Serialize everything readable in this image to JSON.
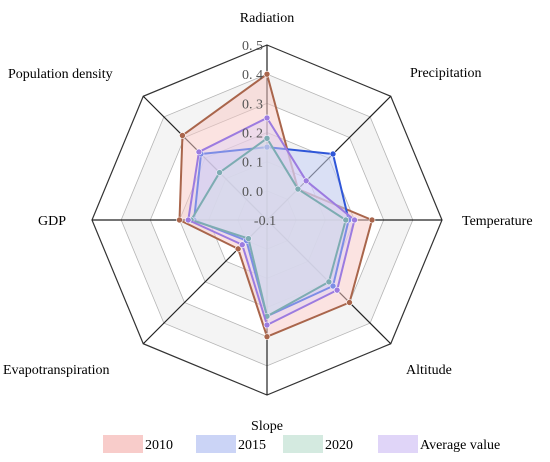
{
  "chart_data": {
    "type": "radar",
    "axes": [
      "Radiation",
      "Precipitation",
      "Temperature",
      "Altitude",
      "Slope",
      "Evapotranspiration",
      "GDP",
      "Population density"
    ],
    "rlim": [
      -0.1,
      0.5
    ],
    "ticks": [
      "-0.1",
      "0.0",
      "0.1",
      "0.2",
      "0.3",
      "0.4",
      "0.5"
    ],
    "grid": true,
    "legend_position": "bottom",
    "series": [
      {
        "name": "2010",
        "values": [
          0.4,
          0.05,
          0.26,
          0.3,
          0.3,
          0.04,
          0.2,
          0.31
        ],
        "color": "#a9654b",
        "fill": "#f7c7c4",
        "opacity": 0.5
      },
      {
        "name": "2015",
        "values": [
          0.15,
          0.22,
          0.18,
          0.22,
          0.23,
          0.0,
          0.15,
          0.22
        ],
        "color": "#2f56d8",
        "fill": "#c5cff5",
        "opacity": 0.55
      },
      {
        "name": "2020",
        "values": [
          0.18,
          0.05,
          0.17,
          0.2,
          0.23,
          -0.01,
          0.16,
          0.13
        ],
        "color": "#2f8f7b",
        "fill": "#cfe8dd",
        "opacity": 0.55
      },
      {
        "name": "Average value",
        "values": [
          0.25,
          0.09,
          0.2,
          0.24,
          0.26,
          0.02,
          0.17,
          0.23
        ],
        "color": "#9c7be0",
        "fill": "#ddd0f7",
        "opacity": 0.45
      }
    ]
  }
}
